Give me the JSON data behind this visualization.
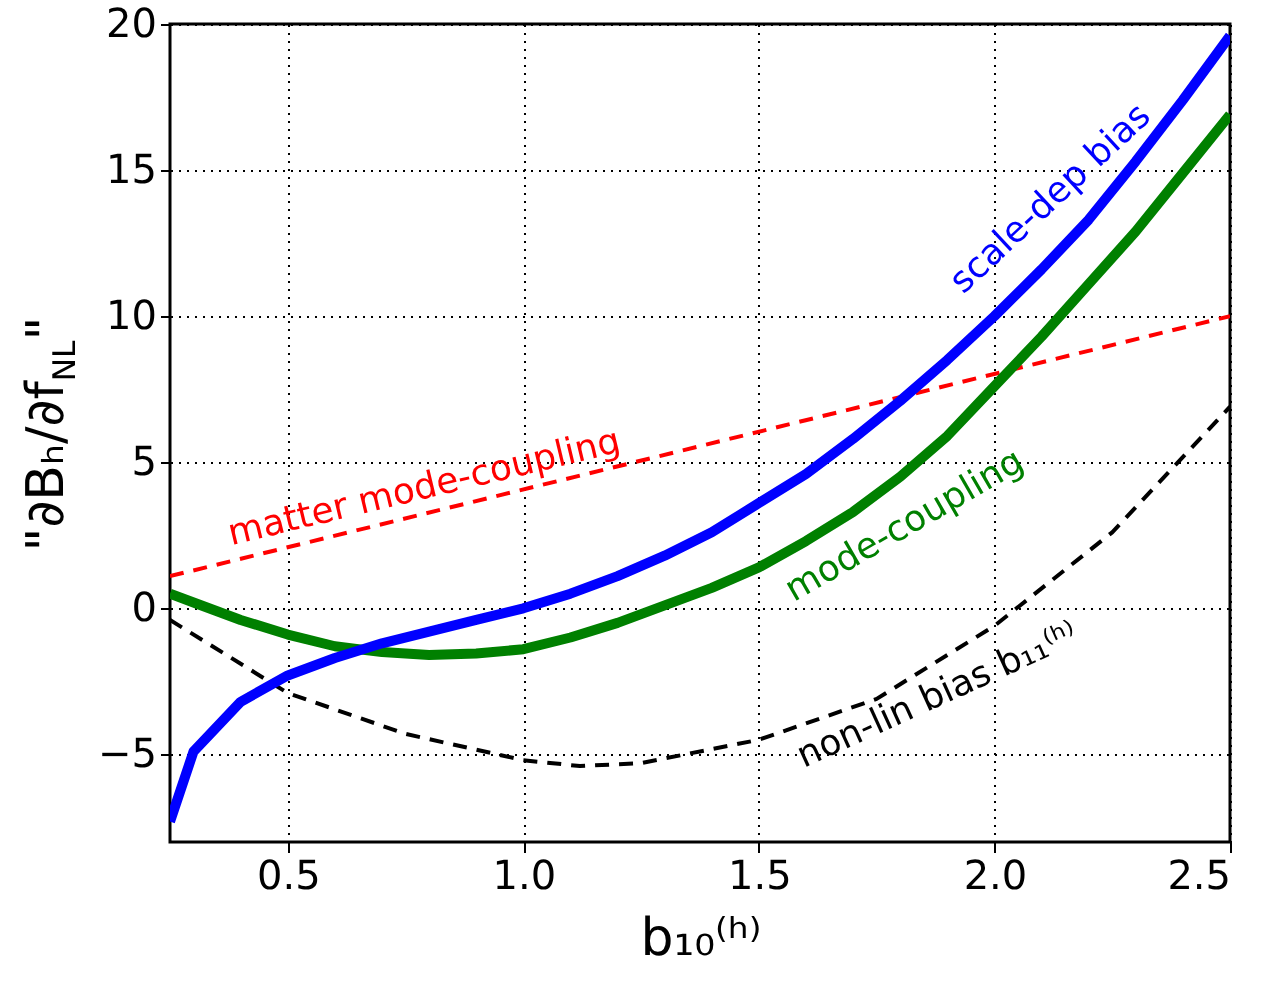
{
  "chart_data": {
    "type": "line",
    "xlabel": "b₁₀⁽ʰ⁾",
    "ylabel": "\"∂Bₕ/∂f$_{NL}$\"",
    "xlim": [
      0.25,
      2.5
    ],
    "xticks": [
      0.5,
      {
        "value": 1,
        "label": "1.0"
      },
      1.5,
      {
        "value": 2,
        "label": "2.0"
      },
      2.5
    ],
    "ylim": [
      -8,
      20
    ],
    "yticks": [
      -5,
      0,
      5,
      10,
      15,
      20
    ],
    "grid": true,
    "series": [
      {
        "color": "#ff0000",
        "line_style": "dashed",
        "x": [
          0.25,
          2.5
        ],
        "values": [
          1.1,
          10
        ]
      },
      {
        "color": "#000000",
        "line_style": "dashed",
        "x": [
          0.25,
          0.5,
          0.75,
          1.0,
          1.12,
          1.25,
          1.5,
          1.75,
          2.0,
          2.25,
          2.5
        ],
        "values": [
          -0.4,
          -2.9,
          -4.3,
          -5.2,
          -5.4,
          -5.3,
          -4.5,
          -3.1,
          -0.6,
          2.6,
          6.9
        ]
      },
      {
        "color": "#008000",
        "line_style": "solid",
        "x": [
          0.25,
          0.3,
          0.4,
          0.5,
          0.6,
          0.7,
          0.8,
          0.9,
          1.0,
          1.1,
          1.2,
          1.3,
          1.4,
          1.5,
          1.6,
          1.7,
          1.8,
          1.9,
          2.0,
          2.1,
          2.2,
          2.3,
          2.4,
          2.5
        ],
        "values": [
          0.5,
          0.2,
          -0.4,
          -0.9,
          -1.3,
          -1.5,
          -1.6,
          -1.55,
          -1.4,
          -1.0,
          -0.5,
          0.1,
          0.7,
          1.4,
          2.3,
          3.3,
          4.5,
          5.9,
          7.6,
          9.3,
          11.1,
          12.9,
          14.9,
          16.9
        ]
      },
      {
        "color": "#0000ff",
        "line_style": "solid",
        "x": [
          0.25,
          0.3,
          0.4,
          0.5,
          0.6,
          0.7,
          0.8,
          0.9,
          1.0,
          1.1,
          1.2,
          1.3,
          1.4,
          1.5,
          1.6,
          1.7,
          1.8,
          1.9,
          2.0,
          2.1,
          2.2,
          2.3,
          2.4,
          2.5
        ],
        "values": [
          -7.3,
          -4.9,
          -3.2,
          -2.3,
          -1.7,
          -1.2,
          -0.8,
          -0.4,
          0,
          0.5,
          1.1,
          1.8,
          2.6,
          3.6,
          4.6,
          5.8,
          7.1,
          8.5,
          10.0,
          11.6,
          13.3,
          15.3,
          17.4,
          19.6
        ]
      }
    ],
    "annotations": [
      "matter mode-coupling",
      "scale-dep bias",
      "mode-coupling",
      "non-lin bias b₁₁⁽ʰ⁾"
    ]
  }
}
